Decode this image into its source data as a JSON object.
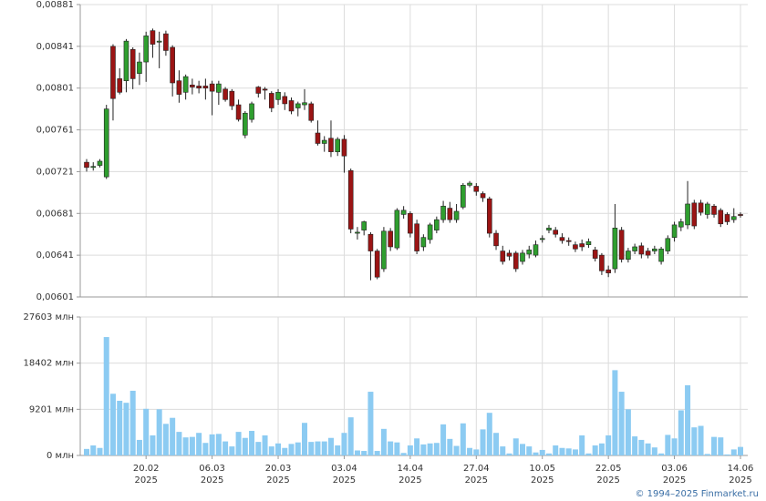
{
  "chart_data": [
    {
      "type": "candlestick",
      "up_color": "#2f9e2f",
      "down_color": "#9b1414",
      "grid": true,
      "ylim": [
        0.00601,
        0.00881
      ],
      "yticks": [
        {
          "value": 0.00601,
          "label": "0,00601"
        },
        {
          "value": 0.00641,
          "label": "0,00641"
        },
        {
          "value": 0.00681,
          "label": "0,00681"
        },
        {
          "value": 0.00721,
          "label": "0,00721"
        },
        {
          "value": 0.00761,
          "label": "0,00761"
        },
        {
          "value": 0.00801,
          "label": "0,00801"
        },
        {
          "value": 0.00841,
          "label": "0,00841"
        },
        {
          "value": 0.00881,
          "label": "0,00881"
        }
      ],
      "open": [
        0.0073,
        0.00725,
        0.00727,
        0.00716,
        0.00841,
        0.0081,
        0.00808,
        0.00838,
        0.00815,
        0.00826,
        0.00856,
        0.00845,
        0.00853,
        0.0084,
        0.00808,
        0.00797,
        0.00804,
        0.00803,
        0.00803,
        0.00805,
        0.00797,
        0.008,
        0.00798,
        0.00785,
        0.00756,
        0.00771,
        0.00802,
        0.008,
        0.00796,
        0.0079,
        0.00793,
        0.00789,
        0.00782,
        0.00785,
        0.00786,
        0.00758,
        0.00748,
        0.00753,
        0.0074,
        0.00752,
        0.00722,
        0.00662,
        0.00665,
        0.00661,
        0.00645,
        0.00628,
        0.00664,
        0.00648,
        0.0068,
        0.00681,
        0.00671,
        0.00649,
        0.00656,
        0.00665,
        0.00675,
        0.00686,
        0.00675,
        0.00687,
        0.00708,
        0.00707,
        0.007,
        0.00695,
        0.00662,
        0.00645,
        0.00643,
        0.00643,
        0.00635,
        0.00642,
        0.00641,
        0.00656,
        0.00665,
        0.00665,
        0.00658,
        0.00655,
        0.00651,
        0.00652,
        0.00651,
        0.00646,
        0.00641,
        0.00627,
        0.00628,
        0.00665,
        0.00637,
        0.00645,
        0.0065,
        0.00645,
        0.00645,
        0.00635,
        0.00645,
        0.00658,
        0.00668,
        0.0067,
        0.00691,
        0.00691,
        0.0068,
        0.00688,
        0.00684,
        0.0068,
        0.00675,
        0.0068
      ],
      "high": [
        0.00733,
        0.0073,
        0.00733,
        0.00785,
        0.00843,
        0.0082,
        0.00848,
        0.0084,
        0.00835,
        0.00855,
        0.00858,
        0.00855,
        0.00856,
        0.00842,
        0.00818,
        0.00814,
        0.0081,
        0.00808,
        0.0081,
        0.00808,
        0.00808,
        0.00802,
        0.008,
        0.0079,
        0.00779,
        0.00788,
        0.00803,
        0.00802,
        0.00798,
        0.008,
        0.00797,
        0.00792,
        0.00788,
        0.008,
        0.00788,
        0.0077,
        0.00755,
        0.0077,
        0.00754,
        0.00756,
        0.00724,
        0.00668,
        0.00674,
        0.00663,
        0.00647,
        0.00668,
        0.00667,
        0.00686,
        0.00688,
        0.00683,
        0.00675,
        0.00661,
        0.00672,
        0.00678,
        0.00693,
        0.00692,
        0.0069,
        0.0071,
        0.00712,
        0.0071,
        0.00702,
        0.00697,
        0.00665,
        0.0065,
        0.00646,
        0.00645,
        0.00646,
        0.0065,
        0.00655,
        0.0066,
        0.0067,
        0.00668,
        0.00662,
        0.00658,
        0.00654,
        0.00656,
        0.00657,
        0.00649,
        0.00643,
        0.00631,
        0.0069,
        0.00668,
        0.00648,
        0.00652,
        0.00653,
        0.00648,
        0.0065,
        0.00649,
        0.0066,
        0.00673,
        0.00676,
        0.00712,
        0.00694,
        0.00694,
        0.00692,
        0.0069,
        0.00686,
        0.00682,
        0.00686,
        0.00682
      ],
      "low": [
        0.00721,
        0.00722,
        0.00725,
        0.00714,
        0.0077,
        0.00795,
        0.00797,
        0.008,
        0.00804,
        0.00807,
        0.0083,
        0.0082,
        0.00832,
        0.00793,
        0.00787,
        0.0079,
        0.00795,
        0.00796,
        0.0079,
        0.00775,
        0.00785,
        0.00788,
        0.0078,
        0.00769,
        0.00753,
        0.00768,
        0.00792,
        0.0079,
        0.00778,
        0.00785,
        0.0078,
        0.00776,
        0.00774,
        0.0078,
        0.00768,
        0.00746,
        0.0074,
        0.00735,
        0.00736,
        0.0072,
        0.00662,
        0.00656,
        0.0066,
        0.00617,
        0.00618,
        0.00625,
        0.00645,
        0.00646,
        0.00676,
        0.00658,
        0.00642,
        0.00645,
        0.00652,
        0.00662,
        0.00672,
        0.00672,
        0.00672,
        0.00685,
        0.00706,
        0.00698,
        0.00692,
        0.00658,
        0.00646,
        0.00632,
        0.00636,
        0.00625,
        0.00632,
        0.00638,
        0.00639,
        0.00653,
        0.00662,
        0.00658,
        0.00652,
        0.0065,
        0.00644,
        0.00645,
        0.00648,
        0.00635,
        0.00622,
        0.0062,
        0.00624,
        0.00634,
        0.00634,
        0.00642,
        0.00638,
        0.00638,
        0.00642,
        0.00632,
        0.00642,
        0.00654,
        0.00664,
        0.00666,
        0.00666,
        0.00679,
        0.00676,
        0.00677,
        0.00668,
        0.0067,
        0.00672,
        0.00677
      ],
      "close": [
        0.00725,
        0.00726,
        0.00731,
        0.00781,
        0.00791,
        0.00797,
        0.00846,
        0.0081,
        0.00826,
        0.00851,
        0.00843,
        0.00846,
        0.00837,
        0.00806,
        0.00795,
        0.00812,
        0.00802,
        0.00801,
        0.00801,
        0.00798,
        0.00805,
        0.0079,
        0.00784,
        0.00771,
        0.00777,
        0.00786,
        0.00796,
        0.00799,
        0.00782,
        0.00797,
        0.00786,
        0.00779,
        0.00786,
        0.00787,
        0.0077,
        0.00748,
        0.00751,
        0.0074,
        0.00752,
        0.00736,
        0.00666,
        0.00663,
        0.00673,
        0.00645,
        0.0062,
        0.00664,
        0.00649,
        0.00684,
        0.00684,
        0.00662,
        0.00645,
        0.00658,
        0.0067,
        0.00675,
        0.00688,
        0.00675,
        0.00683,
        0.00708,
        0.0071,
        0.00702,
        0.00696,
        0.00662,
        0.0065,
        0.00635,
        0.0064,
        0.00628,
        0.00643,
        0.00646,
        0.00651,
        0.00657,
        0.00667,
        0.00661,
        0.00655,
        0.00654,
        0.00647,
        0.00649,
        0.00654,
        0.00638,
        0.00626,
        0.00624,
        0.00667,
        0.00637,
        0.00645,
        0.00649,
        0.00642,
        0.00641,
        0.00647,
        0.00647,
        0.00657,
        0.0067,
        0.00673,
        0.0069,
        0.00669,
        0.00682,
        0.0069,
        0.0068,
        0.00671,
        0.00673,
        0.00678,
        0.00679
      ]
    },
    {
      "type": "bar",
      "color": "#8ccbf2",
      "grid": true,
      "ylim": [
        0,
        27603
      ],
      "yticks": [
        {
          "value": 0,
          "label": "0 млн"
        },
        {
          "value": 9201,
          "label": "9201 млн"
        },
        {
          "value": 18402,
          "label": "18402 млн"
        },
        {
          "value": 27603,
          "label": "27603 млн"
        }
      ],
      "categories": [
        null,
        null,
        null,
        null,
        null,
        null,
        null,
        null,
        null,
        "20.02 2025",
        null,
        null,
        null,
        null,
        null,
        null,
        null,
        null,
        null,
        "06.03 2025",
        null,
        null,
        null,
        null,
        null,
        null,
        null,
        null,
        null,
        "20.03 2025",
        null,
        null,
        null,
        null,
        null,
        null,
        null,
        null,
        null,
        "03.04 2025",
        null,
        null,
        null,
        null,
        null,
        null,
        null,
        null,
        null,
        "14.04 2025",
        null,
        null,
        null,
        null,
        null,
        null,
        null,
        null,
        null,
        "27.04 2025",
        null,
        null,
        null,
        null,
        null,
        null,
        null,
        null,
        null,
        "10.05 2025",
        null,
        null,
        null,
        null,
        null,
        null,
        null,
        null,
        null,
        "22.05 2025",
        null,
        null,
        null,
        null,
        null,
        null,
        null,
        null,
        null,
        "03.06 2025",
        null,
        null,
        null,
        null,
        null,
        null,
        null,
        null,
        null,
        "14.06 2025"
      ],
      "values": [
        1300,
        2000,
        1500,
        23600,
        12300,
        10900,
        10500,
        12900,
        3100,
        9300,
        4000,
        9200,
        6300,
        7500,
        4700,
        3600,
        3700,
        4500,
        2500,
        4200,
        4300,
        2800,
        1800,
        4700,
        3500,
        4900,
        2700,
        4000,
        1800,
        2400,
        1500,
        2300,
        2600,
        6500,
        2700,
        2800,
        2800,
        3500,
        2000,
        4500,
        7600,
        1000,
        900,
        12700,
        900,
        5300,
        2800,
        2600,
        500,
        2000,
        3400,
        2200,
        2400,
        2500,
        6200,
        3300,
        1900,
        6400,
        1500,
        1200,
        5200,
        8500,
        4500,
        1800,
        400,
        3400,
        2300,
        1800,
        600,
        1100,
        400,
        2000,
        1500,
        1400,
        1200,
        4000,
        400,
        2000,
        2400,
        4000,
        17000,
        12700,
        9200,
        3800,
        3100,
        2400,
        1600,
        400,
        4100,
        3400,
        9000,
        14000,
        5600,
        5900,
        300,
        3700,
        3600,
        200,
        1200,
        1700
      ]
    }
  ],
  "source": "© 1994–2025 Finmarket.ru"
}
